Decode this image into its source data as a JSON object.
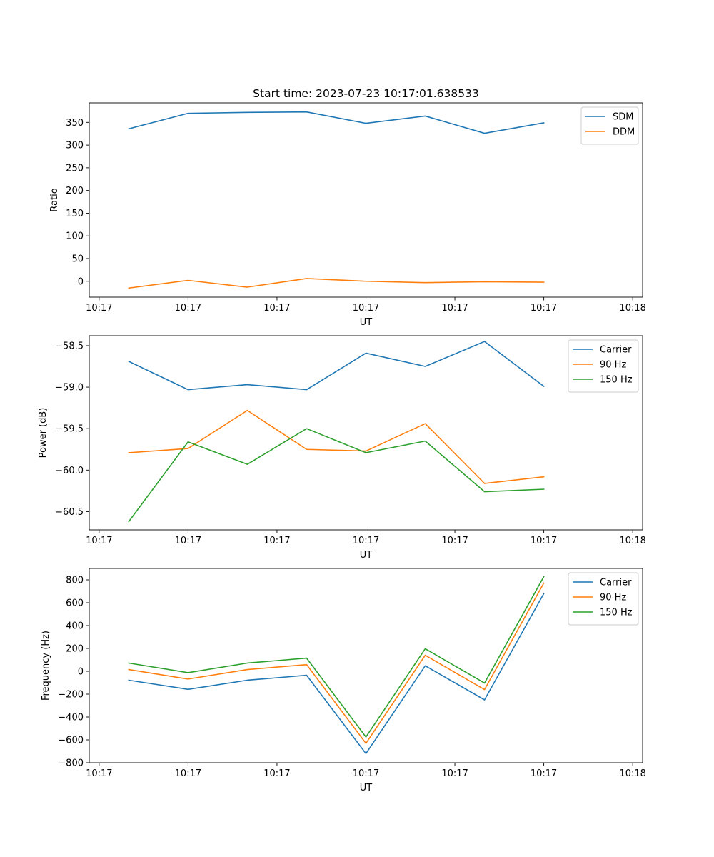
{
  "figure_title": "Start time: 2023-07-23 10:17:01.638533",
  "chart_data": [
    {
      "type": "line",
      "title": "Start time: 2023-07-23 10:17:01.638533",
      "xlabel": "UT",
      "ylabel": "Ratio",
      "x": [
        0.5,
        1.25,
        2.0,
        2.75,
        3.5,
        4.25,
        5.0,
        5.75
      ],
      "xlim": [
        0,
        7
      ],
      "xtick_values": [
        0.125,
        1.25,
        2.375,
        3.5,
        4.625,
        5.75,
        6.875
      ],
      "xtick_labels": [
        "10:17",
        "10:17",
        "10:17",
        "10:17",
        "10:17",
        "10:17",
        "10:18"
      ],
      "ylim": [
        -35,
        393
      ],
      "yticks": [
        0,
        50,
        100,
        150,
        200,
        250,
        300,
        350
      ],
      "ytick_labels": [
        "0",
        "50",
        "100",
        "150",
        "200",
        "250",
        "300",
        "350"
      ],
      "legend_position": "upper right",
      "series": [
        {
          "name": "SDM",
          "color": "#1f77b4",
          "values": [
            336,
            370,
            372,
            373,
            348,
            364,
            326,
            349
          ]
        },
        {
          "name": "DDM",
          "color": "#ff7f0e",
          "values": [
            -15,
            2,
            -13,
            6,
            0,
            -3,
            -1,
            -2
          ]
        }
      ]
    },
    {
      "type": "line",
      "xlabel": "UT",
      "ylabel": "Power (dB)",
      "x": [
        0.5,
        1.25,
        2.0,
        2.75,
        3.5,
        4.25,
        5.0,
        5.75
      ],
      "xlim": [
        0,
        7
      ],
      "xtick_values": [
        0.125,
        1.25,
        2.375,
        3.5,
        4.625,
        5.75,
        6.875
      ],
      "xtick_labels": [
        "10:17",
        "10:17",
        "10:17",
        "10:17",
        "10:17",
        "10:17",
        "10:18"
      ],
      "ylim": [
        -60.72,
        -58.38
      ],
      "yticks": [
        -60.5,
        -60.0,
        -59.5,
        -59.0,
        -58.5
      ],
      "ytick_labels": [
        "−60.5",
        "−60.0",
        "−59.5",
        "−59.0",
        "−58.5"
      ],
      "legend_position": "upper right",
      "series": [
        {
          "name": "Carrier",
          "color": "#1f77b4",
          "values": [
            -58.69,
            -59.03,
            -58.97,
            -59.03,
            -58.59,
            -58.75,
            -58.45,
            -58.99
          ]
        },
        {
          "name": "90 Hz",
          "color": "#ff7f0e",
          "values": [
            -59.79,
            -59.74,
            -59.28,
            -59.75,
            -59.77,
            -59.44,
            -60.16,
            -60.08
          ]
        },
        {
          "name": "150 Hz",
          "color": "#2ca02c",
          "values": [
            -60.62,
            -59.66,
            -59.93,
            -59.5,
            -59.79,
            -59.65,
            -60.26,
            -60.23
          ]
        }
      ]
    },
    {
      "type": "line",
      "xlabel": "UT",
      "ylabel": "Frequency (Hz)",
      "x": [
        0.5,
        1.25,
        2.0,
        2.75,
        3.5,
        4.25,
        5.0,
        5.75
      ],
      "xlim": [
        0,
        7
      ],
      "xtick_values": [
        0.125,
        1.25,
        2.375,
        3.5,
        4.625,
        5.75,
        6.875
      ],
      "xtick_labels": [
        "10:17",
        "10:17",
        "10:17",
        "10:17",
        "10:17",
        "10:17",
        "10:18"
      ],
      "ylim": [
        -800,
        900
      ],
      "yticks": [
        -800,
        -600,
        -400,
        -200,
        0,
        200,
        400,
        600,
        800
      ],
      "ytick_labels": [
        "−800",
        "−600",
        "−400",
        "−200",
        "0",
        "200",
        "400",
        "600",
        "800"
      ],
      "legend_position": "upper right",
      "series": [
        {
          "name": "Carrier",
          "color": "#1f77b4",
          "values": [
            -78,
            -158,
            -78,
            -35,
            -720,
            48,
            -250,
            680
          ]
        },
        {
          "name": "90 Hz",
          "color": "#ff7f0e",
          "values": [
            15,
            -68,
            15,
            58,
            -630,
            140,
            -160,
            772
          ]
        },
        {
          "name": "150 Hz",
          "color": "#2ca02c",
          "values": [
            72,
            -12,
            72,
            115,
            -575,
            197,
            -103,
            828
          ]
        }
      ]
    }
  ]
}
